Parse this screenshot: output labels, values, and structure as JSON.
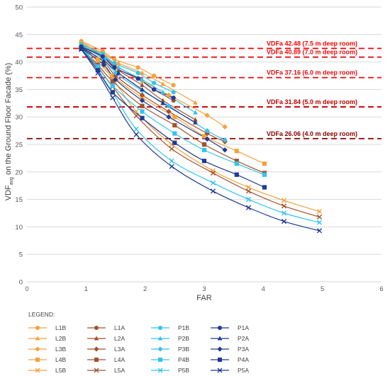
{
  "chart_data": {
    "type": "scatter",
    "xlabel": "FAR",
    "ylabel": "VDF",
    "ylabel_sub": "avg",
    "ylabel_rest": " on the Ground Floor Facade (%)",
    "xlim": [
      0,
      6
    ],
    "ylim": [
      0,
      50
    ],
    "x_ticks": [
      "0",
      "1",
      "2",
      "3",
      "4",
      "5",
      "6"
    ],
    "y_ticks": [
      "0",
      "5",
      "10",
      "15",
      "20",
      "25",
      "30",
      "35",
      "40",
      "45",
      "50"
    ],
    "grid": "horizontal",
    "legend_title": "LEGEND:",
    "legend_position": "bottom",
    "reference_lines": [
      {
        "value": 42.48,
        "label": "VDFa 42.48 (7.5 m deep room)",
        "color": "#ff0000"
      },
      {
        "value": 40.89,
        "label": "VDFa 40.89 (7.0 m deep room)",
        "color": "#e01010"
      },
      {
        "value": 37.16,
        "label": "VDFa 37.16 (6.0 m deep room)",
        "color": "#e01010"
      },
      {
        "value": 31.84,
        "label": "VDFa 31.84 (5.0 m deep room)",
        "color": "#c00000"
      },
      {
        "value": 26.06,
        "label": "VDFa 26.06 (4.0 m deep room)",
        "color": "#8b0000"
      }
    ],
    "series": [
      {
        "name": "L1B",
        "color": "#f4a23c",
        "marker": "circle",
        "x": [
          0.92,
          1.28,
          1.48,
          1.88,
          2.15,
          2.48
        ],
        "y": [
          43.8,
          42.0,
          40.5,
          39.0,
          37.5,
          35.8
        ]
      },
      {
        "name": "L2B",
        "color": "#f4a23c",
        "marker": "triangle",
        "x": [
          0.92,
          1.3,
          1.55,
          1.95,
          2.3,
          2.85
        ],
        "y": [
          43.6,
          41.5,
          39.8,
          38.0,
          36.0,
          32.6
        ]
      },
      {
        "name": "L3B",
        "color": "#f4a23c",
        "marker": "diamond",
        "x": [
          0.92,
          1.3,
          1.5,
          1.95,
          2.4,
          3.05,
          3.35
        ],
        "y": [
          43.5,
          41.0,
          39.0,
          36.5,
          34.0,
          30.3,
          28.2
        ]
      },
      {
        "name": "L4B",
        "color": "#f4a23c",
        "marker": "square",
        "x": [
          0.92,
          1.2,
          1.45,
          1.95,
          2.5,
          3.0,
          3.55,
          4.02
        ],
        "y": [
          43.4,
          40.5,
          37.5,
          33.5,
          30.0,
          26.5,
          23.8,
          21.5
        ]
      },
      {
        "name": "L5B",
        "color": "#f4a23c",
        "marker": "x",
        "x": [
          0.92,
          1.2,
          1.45,
          1.85,
          2.45,
          3.15,
          3.75,
          4.35,
          4.95
        ],
        "y": [
          43.3,
          40.0,
          37.0,
          31.0,
          25.0,
          20.2,
          17.2,
          14.8,
          12.8
        ]
      },
      {
        "name": "L1A",
        "color": "#a0522d",
        "marker": "circle",
        "x": [
          0.92,
          1.28,
          1.48,
          1.88,
          2.15,
          2.48
        ],
        "y": [
          43.0,
          41.2,
          39.5,
          37.0,
          35.0,
          33.0
        ]
      },
      {
        "name": "L2A",
        "color": "#a0522d",
        "marker": "triangle",
        "x": [
          0.92,
          1.3,
          1.55,
          1.95,
          2.3,
          2.85
        ],
        "y": [
          43.0,
          40.8,
          38.5,
          35.8,
          33.0,
          29.5
        ]
      },
      {
        "name": "L3A",
        "color": "#a0522d",
        "marker": "diamond",
        "x": [
          0.92,
          1.3,
          1.5,
          1.95,
          2.4,
          3.05,
          3.35
        ],
        "y": [
          42.8,
          40.0,
          37.5,
          34.0,
          31.0,
          27.0,
          25.5
        ]
      },
      {
        "name": "L4A",
        "color": "#a0522d",
        "marker": "square",
        "x": [
          0.92,
          1.2,
          1.45,
          1.95,
          2.5,
          3.0,
          3.55,
          4.02
        ],
        "y": [
          42.6,
          39.5,
          36.5,
          32.0,
          28.5,
          25.0,
          22.0,
          19.8
        ]
      },
      {
        "name": "L5A",
        "color": "#a0522d",
        "marker": "x",
        "x": [
          0.92,
          1.2,
          1.45,
          1.85,
          2.45,
          3.15,
          3.75,
          4.35,
          4.95
        ],
        "y": [
          42.5,
          39.0,
          35.5,
          30.2,
          24.2,
          19.8,
          16.5,
          13.8,
          11.8
        ]
      },
      {
        "name": "P1B",
        "color": "#33c3f0",
        "marker": "circle",
        "x": [
          0.92,
          1.28,
          1.48,
          1.88,
          2.15,
          2.48
        ],
        "y": [
          43.2,
          41.5,
          39.8,
          38.0,
          36.2,
          34.5
        ]
      },
      {
        "name": "P2B",
        "color": "#33c3f0",
        "marker": "triangle",
        "x": [
          0.92,
          1.3,
          1.55,
          1.95,
          2.3,
          2.85
        ],
        "y": [
          43.0,
          41.0,
          39.0,
          36.8,
          34.5,
          30.8
        ]
      },
      {
        "name": "P3B",
        "color": "#33c3f0",
        "marker": "diamond",
        "x": [
          0.92,
          1.3,
          1.5,
          1.95,
          2.4,
          3.05,
          3.35
        ],
        "y": [
          42.9,
          40.5,
          38.0,
          34.8,
          32.0,
          27.5,
          25.8
        ]
      },
      {
        "name": "P4B",
        "color": "#33c3f0",
        "marker": "square",
        "x": [
          0.92,
          1.2,
          1.45,
          1.95,
          2.5,
          3.0,
          3.55,
          4.02
        ],
        "y": [
          42.8,
          39.2,
          35.7,
          31.0,
          27.0,
          24.0,
          21.5,
          19.5
        ]
      },
      {
        "name": "P5B",
        "color": "#33c3f0",
        "marker": "x",
        "x": [
          0.92,
          1.2,
          1.45,
          1.85,
          2.45,
          3.15,
          3.75,
          4.35,
          4.95
        ],
        "y": [
          42.7,
          38.5,
          34.5,
          27.8,
          22.0,
          18.0,
          15.0,
          12.5,
          10.8
        ]
      },
      {
        "name": "P1A",
        "color": "#1f3a93",
        "marker": "circle",
        "x": [
          0.92,
          1.28,
          1.48,
          1.88,
          2.15,
          2.48
        ],
        "y": [
          42.8,
          41.0,
          39.0,
          37.0,
          35.0,
          33.5
        ]
      },
      {
        "name": "P2A",
        "color": "#1f3a93",
        "marker": "triangle",
        "x": [
          0.92,
          1.3,
          1.55,
          1.95,
          2.3,
          2.85
        ],
        "y": [
          42.6,
          40.2,
          38.0,
          35.0,
          32.5,
          29.0
        ]
      },
      {
        "name": "P3A",
        "color": "#1f3a93",
        "marker": "diamond",
        "x": [
          0.92,
          1.3,
          1.5,
          1.95,
          2.4,
          3.05,
          3.35
        ],
        "y": [
          42.5,
          39.5,
          36.8,
          33.0,
          30.0,
          26.0,
          24.0
        ]
      },
      {
        "name": "P4A",
        "color": "#1f3a93",
        "marker": "square",
        "x": [
          0.92,
          1.2,
          1.45,
          1.95,
          2.5,
          3.0,
          3.55,
          4.02
        ],
        "y": [
          42.4,
          38.5,
          34.5,
          29.8,
          25.3,
          22.0,
          19.5,
          17.2
        ]
      },
      {
        "name": "P5A",
        "color": "#1f3a93",
        "marker": "x",
        "x": [
          0.92,
          1.2,
          1.45,
          1.85,
          2.45,
          3.15,
          3.75,
          4.35,
          4.95
        ],
        "y": [
          42.3,
          38.0,
          33.5,
          26.8,
          21.0,
          16.5,
          13.5,
          11.0,
          9.3
        ]
      }
    ]
  }
}
